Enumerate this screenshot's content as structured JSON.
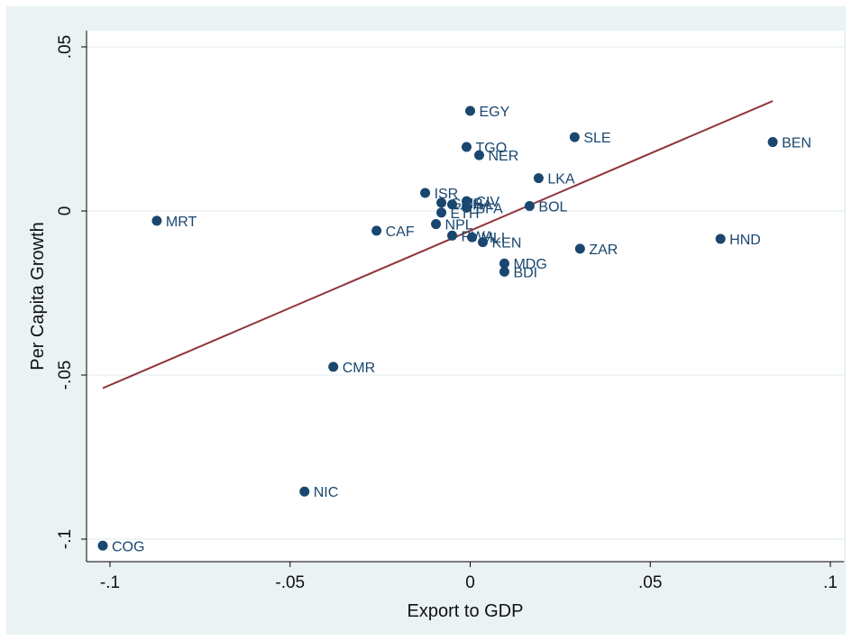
{
  "chart_data": {
    "type": "scatter",
    "xlabel": "Export to GDP",
    "ylabel": "Per Capita Growth",
    "xlim": [
      -0.1,
      0.1
    ],
    "ylim": [
      -0.1,
      0.05
    ],
    "x_ticks": [
      {
        "value": -0.1,
        "label": "-.1"
      },
      {
        "value": -0.05,
        "label": "-.05"
      },
      {
        "value": 0,
        "label": "0"
      },
      {
        "value": 0.05,
        "label": ".05"
      },
      {
        "value": 0.1,
        "label": ".1"
      }
    ],
    "y_ticks": [
      {
        "value": -0.1,
        "label": "-.1"
      },
      {
        "value": -0.05,
        "label": "-.05"
      },
      {
        "value": 0,
        "label": "0"
      },
      {
        "value": 0.05,
        "label": ".05"
      }
    ],
    "grid": "horizontal",
    "marker_color": "#1a476f",
    "fit_color": "#90353b",
    "background_outer": "#eaf2f3",
    "background_plot": "#ffffff",
    "points": [
      {
        "label": "COG",
        "x": -0.102,
        "y": -0.102
      },
      {
        "label": "MRT",
        "x": -0.087,
        "y": -0.003
      },
      {
        "label": "NIC",
        "x": -0.046,
        "y": -0.0855
      },
      {
        "label": "CMR",
        "x": -0.038,
        "y": -0.0475
      },
      {
        "label": "CAF",
        "x": -0.026,
        "y": -0.006
      },
      {
        "label": "ISR",
        "x": -0.0125,
        "y": 0.0055
      },
      {
        "label": "NPL",
        "x": -0.0095,
        "y": -0.004
      },
      {
        "label": "ETH",
        "x": -0.008,
        "y": -0.0005
      },
      {
        "label": "GMB",
        "x": -0.008,
        "y": 0.0025
      },
      {
        "label": "GHA",
        "x": -0.005,
        "y": 0.002
      },
      {
        "label": "RWA",
        "x": -0.005,
        "y": -0.0075
      },
      {
        "label": "MLI",
        "x": 0.0005,
        "y": -0.008
      },
      {
        "label": "CIV",
        "x": -0.001,
        "y": 0.003
      },
      {
        "label": "BFA",
        "x": -0.001,
        "y": 0.001
      },
      {
        "label": "KEN",
        "x": 0.0035,
        "y": -0.0095
      },
      {
        "label": "EGY",
        "x": 0.0,
        "y": 0.0305
      },
      {
        "label": "TGO",
        "x": -0.001,
        "y": 0.0195
      },
      {
        "label": "NER",
        "x": 0.0025,
        "y": 0.017
      },
      {
        "label": "MDG",
        "x": 0.0095,
        "y": -0.016
      },
      {
        "label": "BDI",
        "x": 0.0095,
        "y": -0.0185
      },
      {
        "label": "BOL",
        "x": 0.0165,
        "y": 0.0015
      },
      {
        "label": "LKA",
        "x": 0.019,
        "y": 0.01
      },
      {
        "label": "SLE",
        "x": 0.029,
        "y": 0.0225
      },
      {
        "label": "ZAR",
        "x": 0.0305,
        "y": -0.0115
      },
      {
        "label": "HND",
        "x": 0.0695,
        "y": -0.0085
      },
      {
        "label": "BEN",
        "x": 0.084,
        "y": 0.021
      }
    ],
    "fit_line": {
      "x": [
        -0.102,
        0.084
      ],
      "y": [
        -0.054,
        0.0335
      ]
    }
  }
}
